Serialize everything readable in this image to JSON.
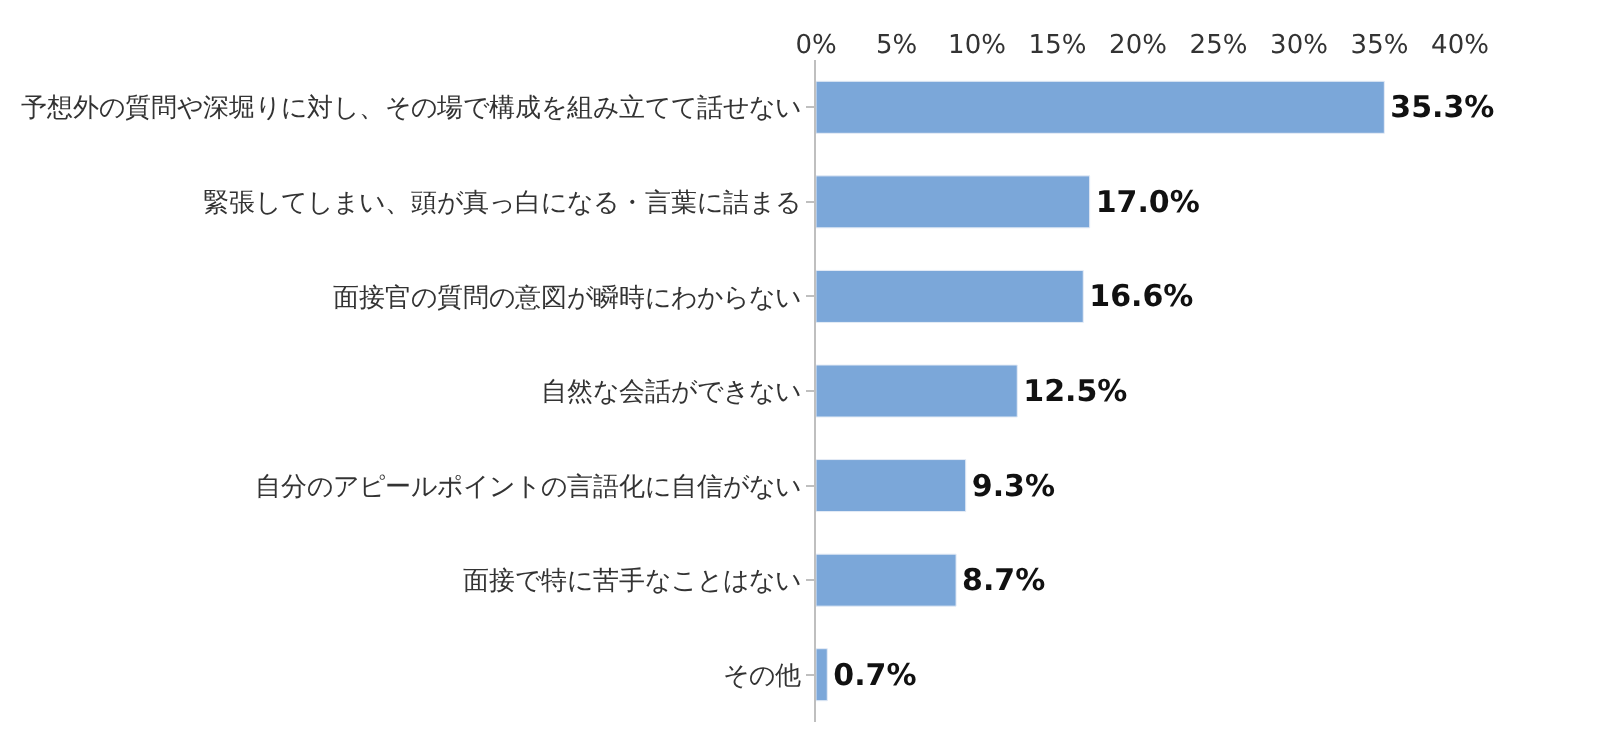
{
  "chart_data": {
    "type": "bar",
    "orientation": "horizontal",
    "categories": [
      "予想外の質問や深堀りに対し、その場で構成を組み立てて話せない",
      "緊張してしまい、頭が真っ白になる・言葉に詰まる",
      "面接官の質問の意図が瞬時にわからない",
      "自然な会話ができない",
      "自分のアピールポイントの言語化に自信がない",
      "面接で特に苦手なことはない",
      "その他"
    ],
    "values": [
      35.3,
      17.0,
      16.6,
      12.5,
      9.3,
      8.7,
      0.7
    ],
    "value_labels": [
      "35.3%",
      "17.0%",
      "16.6%",
      "12.5%",
      "9.3%",
      "8.7%",
      "0.7%"
    ],
    "color": "#7ba7d9",
    "xlim": [
      0,
      40
    ],
    "xticks": [
      {
        "value": 0,
        "label": "0%"
      },
      {
        "value": 5,
        "label": "5%"
      },
      {
        "value": 10,
        "label": "10%"
      },
      {
        "value": 15,
        "label": "15%"
      },
      {
        "value": 20,
        "label": "20%"
      },
      {
        "value": 25,
        "label": "25%"
      },
      {
        "value": 30,
        "label": "30%"
      },
      {
        "value": 35,
        "label": "35%"
      },
      {
        "value": 40,
        "label": "40%"
      }
    ],
    "legend": false
  }
}
